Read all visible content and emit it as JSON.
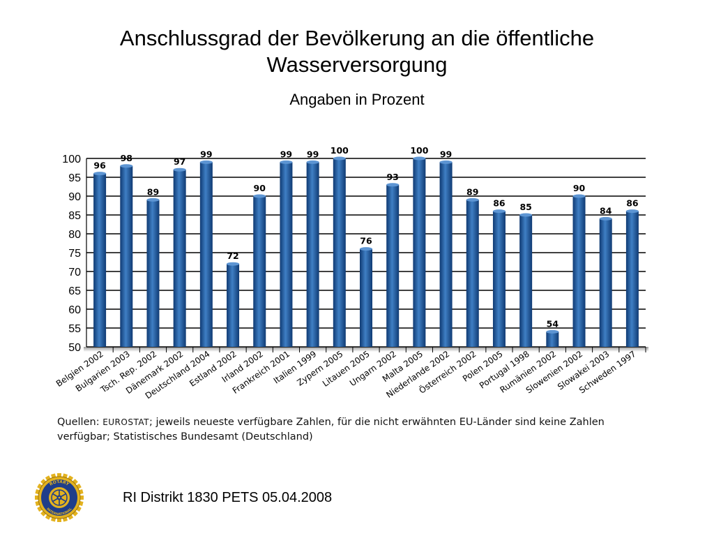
{
  "slide": {
    "title_line1": "Anschlussgrad der Bevölkerung an die öffentliche",
    "title_line2": "Wasserversorgung",
    "subtitle": "Angaben in Prozent",
    "source_prefix": "Quellen:",
    "source_org": "EUROSTAT",
    "source_line1_rest": "; jeweils neueste verfügbare Zahlen, für die nicht erwähnten EU-Länder sind keine Zahlen",
    "source_line2": "verfügbar; Statistisches Bundesamt (Deutschland)",
    "footer": "RI Distrikt 1830 PETS 05.04.2008",
    "logo_icon": "rotary-wheel-icon",
    "logo_text_top": "ROTARY",
    "logo_text_bottom": "INTERNATIONAL"
  },
  "chart_data": {
    "type": "bar",
    "title": "",
    "xlabel": "",
    "ylabel": "",
    "ylim": [
      50,
      100
    ],
    "yticks": [
      100,
      95,
      90,
      85,
      80,
      75,
      70,
      65,
      60,
      55,
      50
    ],
    "grid": true,
    "legend": "none",
    "colors": {
      "bar": "#1d5aa0",
      "bar_light": "#3f7fc4",
      "bar_dark": "#0f3a73",
      "grid": "#000000"
    },
    "categories": [
      "Belgien 2002",
      "Bulgarien 2003",
      "Tsch. Rep. 2002",
      "Dänemark 2002",
      "Deutschland 2004",
      "Estland 2002",
      "Irland 2002",
      "Frankreich 2001",
      "Italien 1999",
      "Zypern 2005",
      "Litauen 2005",
      "Ungarn 2002",
      "Malta 2005",
      "Niederlande 2002",
      "Österreich 2002",
      "Polen 2005",
      "Portugal 1998",
      "Rumänien 2002",
      "Slowenien 2002",
      "Slowakei 2003",
      "Schweden 1997"
    ],
    "values": [
      96,
      98,
      89,
      97,
      99,
      72,
      90,
      99,
      99,
      100,
      76,
      93,
      100,
      99,
      89,
      86,
      85,
      54,
      90,
      84,
      86
    ],
    "value_labels": [
      "96",
      "98",
      "89",
      "97",
      "99",
      "72",
      "90",
      "99",
      "99",
      "100",
      "76",
      "93",
      "100",
      "99",
      "89",
      "86",
      "85",
      "54",
      "90",
      "84",
      "86"
    ]
  }
}
